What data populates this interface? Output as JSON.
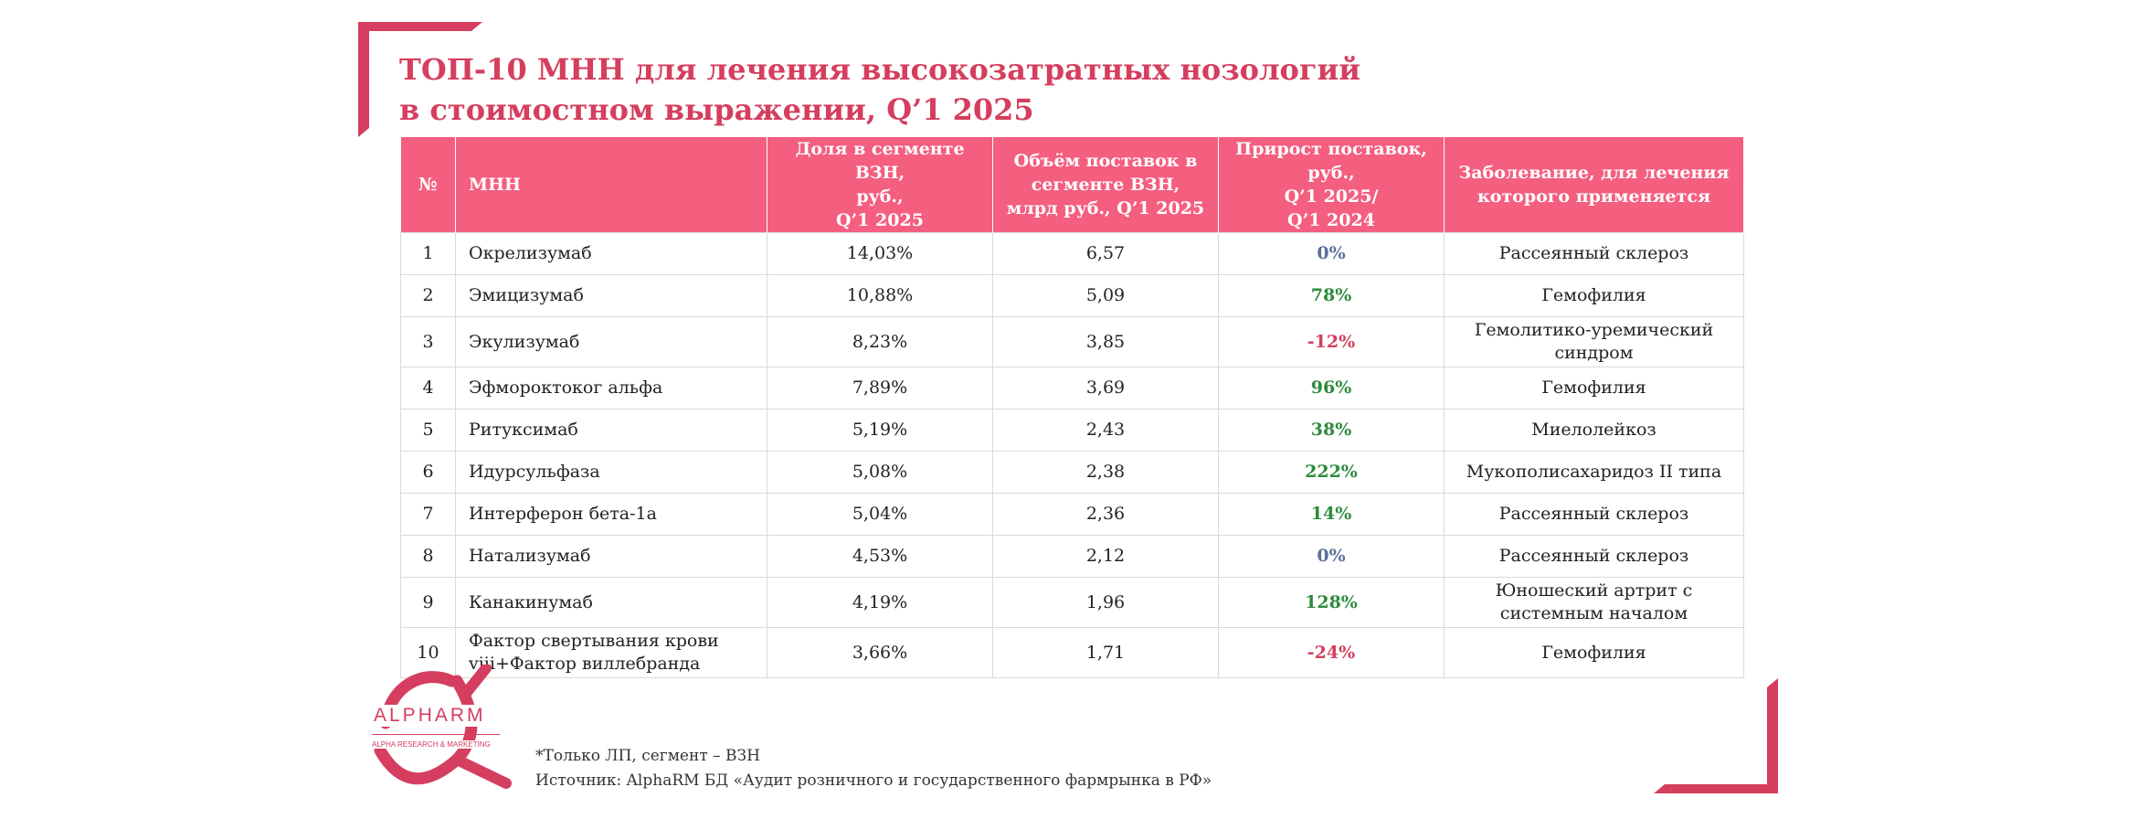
{
  "title": {
    "line1": "ТОП-10 МНН для лечения высокозатратных нозологий",
    "line2": "в стоимостном выражении, Q’1 2025"
  },
  "colors": {
    "accent": "#d53e5e",
    "header_bg": "#f45e7f",
    "positive": "#2e8b3c",
    "negative": "#d53e5e",
    "neutral": "#5a6f9a"
  },
  "table": {
    "headers": {
      "num": "№",
      "inn": "МНН",
      "share": "Доля в сегменте ВЗН,\nруб.,\nQ’1 2025",
      "volume": "Объём поставок в\nсегменте ВЗН,\nмлрд руб., Q’1 2025",
      "growth": "Прирост поставок, руб.,\nQ’1 2025/\nQ’1 2024",
      "disease": "Заболевание, для лечения\nкоторого применяется"
    },
    "rows": [
      {
        "num": "1",
        "inn": "Окрелизумаб",
        "share": "14,03%",
        "volume": "6,57",
        "growth": "0%",
        "disease": "Рассеянный склероз"
      },
      {
        "num": "2",
        "inn": "Эмицизумаб",
        "share": "10,88%",
        "volume": "5,09",
        "growth": "78%",
        "disease": "Гемофилия"
      },
      {
        "num": "3",
        "inn": "Экулизумаб",
        "share": "8,23%",
        "volume": "3,85",
        "growth": "-12%",
        "disease": "Гемолитико-уремический синдром"
      },
      {
        "num": "4",
        "inn": "Эфмороктоког альфа",
        "share": "7,89%",
        "volume": "3,69",
        "growth": "96%",
        "disease": "Гемофилия"
      },
      {
        "num": "5",
        "inn": "Ритуксимаб",
        "share": "5,19%",
        "volume": "2,43",
        "growth": "38%",
        "disease": "Миелолейкоз"
      },
      {
        "num": "6",
        "inn": "Идурсульфаза",
        "share": "5,08%",
        "volume": "2,38",
        "growth": "222%",
        "disease": "Мукополисахаридоз II типа"
      },
      {
        "num": "7",
        "inn": "Интерферон бета-1а",
        "share": "5,04%",
        "volume": "2,36",
        "growth": "14%",
        "disease": "Рассеянный склероз"
      },
      {
        "num": "8",
        "inn": "Натализумаб",
        "share": "4,53%",
        "volume": "2,12",
        "growth": "0%",
        "disease": "Рассеянный склероз"
      },
      {
        "num": "9",
        "inn": "Канакинумаб",
        "share": "4,19%",
        "volume": "1,96",
        "growth": "128%",
        "disease": "Юношеский артрит с системным началом"
      },
      {
        "num": "10",
        "inn": "Фактор свертывания крови viii+Фактор виллебранда",
        "share": "3,66%",
        "volume": "1,71",
        "growth": "-24%",
        "disease": "Гемофилия"
      }
    ]
  },
  "logo": {
    "name": "ALPHARM",
    "tagline": "ALPHA RESEARCH & MARKETING"
  },
  "footnote": {
    "line1": "*Только ЛП, сегмент – ВЗН",
    "line2": "Источник: AlphaRM БД «Аудит розничного и государственного фармрынка в РФ»"
  }
}
